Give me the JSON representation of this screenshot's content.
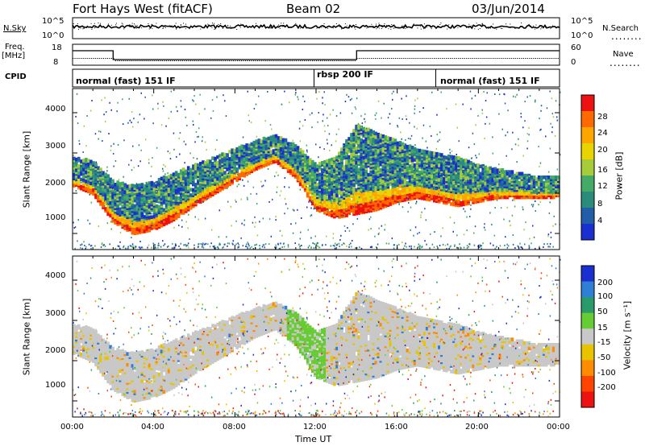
{
  "header": {
    "station": "Fort Hays West (fitACF)",
    "beam": "Beam 02",
    "date": "03/Jun/2014"
  },
  "side_labels": {
    "nsky": "N.Sky",
    "nsearch": "N.Search",
    "freq_line1": "Freq.",
    "freq_line2": "[MHz]",
    "nave": "Nave",
    "cpid": "CPID"
  },
  "top_panel": {
    "left_ticks": [
      "10^5",
      "10^0"
    ],
    "right_ticks": [
      "10^5",
      "10^0"
    ],
    "freq_ticks": [
      "18",
      "8"
    ],
    "nave_ticks": [
      "60",
      "0"
    ]
  },
  "cpid_segments": [
    {
      "label": "normal (fast) 151 IF",
      "start_h": 0,
      "end_h": 11.9
    },
    {
      "label": "rbsp 200 IF",
      "start_h": 11.9,
      "end_h": 17.9
    },
    {
      "label": "normal (fast) 151 IF",
      "start_h": 17.9,
      "end_h": 24
    }
  ],
  "axes": {
    "x_ticks": [
      "00:00",
      "04:00",
      "08:00",
      "12:00",
      "16:00",
      "20:00",
      "00:00"
    ],
    "x_label": "Time UT",
    "y_label": "Slant Range [km]",
    "y_ticks": [
      "1000",
      "2000",
      "3000",
      "4000"
    ]
  },
  "power_scale": {
    "title": "Power [dB]",
    "ticks": [
      "28",
      "24",
      "20",
      "16",
      "12",
      "8",
      "4"
    ],
    "colors": [
      "#ee1111",
      "#ff6a00",
      "#ffa500",
      "#e8d400",
      "#a6cc3a",
      "#44aa66",
      "#2b8c7c",
      "#225ea8",
      "#1a2fd0"
    ]
  },
  "velocity_scale": {
    "title": "Velocity [m s⁻¹]",
    "ticks": [
      "200",
      "100",
      "50",
      "15",
      "-15",
      "-50",
      "-100",
      "-200"
    ],
    "colors": [
      "#1a2fd0",
      "#2f7fd6",
      "#2a9a6a",
      "#66cc33",
      "#c8c8c8",
      "#e8c400",
      "#ff8c00",
      "#ff4400",
      "#ee1111"
    ]
  },
  "chart_data": {
    "type": "heatmap",
    "x": {
      "unit": "hours UT",
      "range": [
        0,
        24
      ]
    },
    "y": {
      "unit": "km",
      "range": [
        600,
        4600
      ]
    },
    "echo_band": {
      "hours": [
        0,
        1,
        2,
        3,
        4,
        5,
        6,
        7,
        8,
        9,
        10,
        11,
        12,
        13,
        14,
        15,
        16,
        17,
        18,
        19,
        20,
        21,
        22,
        23,
        24
      ],
      "lower_km": [
        2200,
        2000,
        1300,
        1000,
        1100,
        1350,
        1700,
        2000,
        2300,
        2600,
        2800,
        2400,
        1600,
        1400,
        1500,
        1600,
        1800,
        1900,
        1800,
        1700,
        1800,
        1900,
        1900,
        1900,
        1900
      ],
      "upper_km": [
        2900,
        2800,
        2300,
        2200,
        2300,
        2500,
        2700,
        2900,
        3100,
        3300,
        3450,
        3200,
        2700,
        2900,
        3700,
        3500,
        3300,
        3100,
        3000,
        2900,
        2700,
        2600,
        2500,
        2400,
        2400
      ]
    }
  }
}
